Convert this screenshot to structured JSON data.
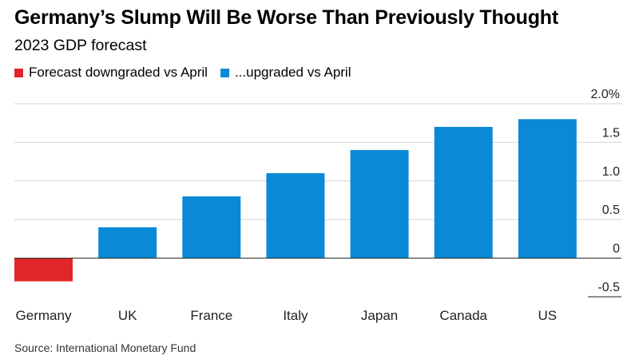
{
  "header": {
    "title": "Germany’s Slump Will Be Worse Than Previously Thought",
    "subtitle": "2023 GDP forecast"
  },
  "legend": {
    "items": [
      {
        "label": "Forecast downgraded vs April",
        "color": "#e0262a"
      },
      {
        "label": "...upgraded vs April",
        "color": "#0a8ad6"
      }
    ]
  },
  "footer": {
    "source": "Source: International Monetary Fund"
  },
  "chart_data": {
    "type": "bar",
    "title": "Germany’s Slump Will Be Worse Than Previously Thought",
    "subtitle": "2023 GDP forecast",
    "categories": [
      "Germany",
      "UK",
      "France",
      "Italy",
      "Japan",
      "Canada",
      "US"
    ],
    "values": [
      -0.3,
      0.4,
      0.8,
      1.1,
      1.4,
      1.7,
      1.8
    ],
    "status": [
      "downgraded",
      "upgraded",
      "upgraded",
      "upgraded",
      "upgraded",
      "upgraded",
      "upgraded"
    ],
    "colors": {
      "downgraded": "#e0262a",
      "upgraded": "#0a8ad6"
    },
    "ylim": [
      -0.5,
      2.0
    ],
    "yticks": [
      -0.5,
      0,
      0.5,
      1.0,
      1.5,
      2.0
    ],
    "ytick_labels": [
      "-0.5",
      "0",
      "0.5",
      "1.0",
      "1.5",
      "2.0%"
    ],
    "xlabel": "",
    "ylabel": "",
    "y_axis_side": "right",
    "grid": true,
    "legend_position": "top-left"
  }
}
